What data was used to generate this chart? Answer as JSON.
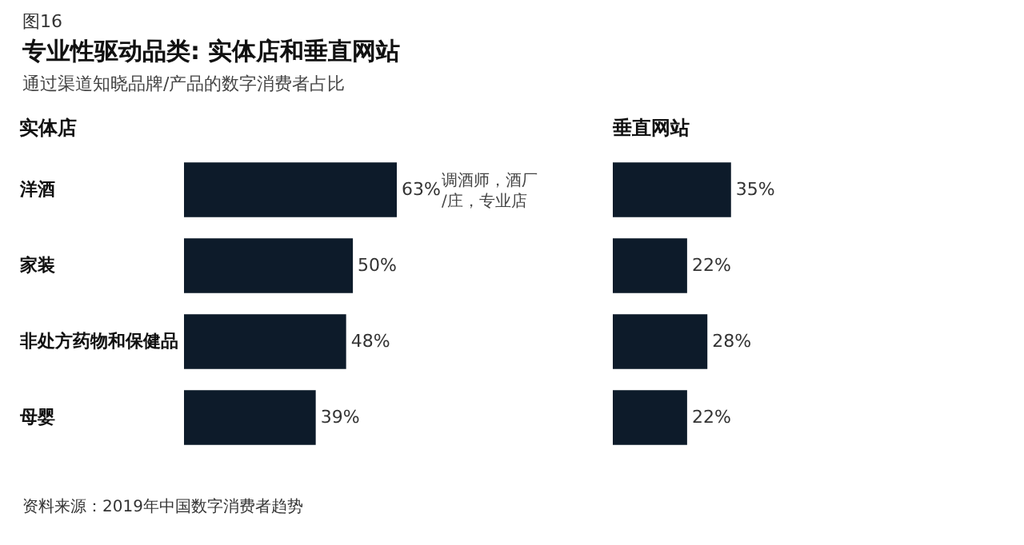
{
  "chart_data": [
    {
      "type": "bar",
      "orientation": "horizontal",
      "title": "专业性驱动品类: 实体店和垂直网站",
      "subtitle": "通过渠道知晓品牌/产品的数字消费者占比",
      "categories": [
        "洋酒",
        "家装",
        "非处方药物和保健品",
        "母婴"
      ],
      "series": [
        {
          "name": "实体店",
          "color": "#0d1b2a",
          "values": [
            63,
            50,
            48,
            39
          ],
          "value_labels": [
            "63%",
            "50%",
            "48%",
            "39%"
          ]
        }
      ],
      "annotations": [
        "图16",
        "调酒师，酒厂/庄，专业店",
        "资料来源：2019年中国数字消费者趋势"
      ]
    },
    {
      "type": "bar",
      "orientation": "horizontal",
      "categories": [
        null,
        null,
        null,
        null
      ],
      "series": [
        {
          "name": "垂直网站",
          "color": "#0d1b2a",
          "values": [
            35,
            22,
            28,
            22
          ],
          "value_labels": [
            "35%",
            "22%",
            "28%",
            "22%"
          ]
        }
      ]
    }
  ]
}
